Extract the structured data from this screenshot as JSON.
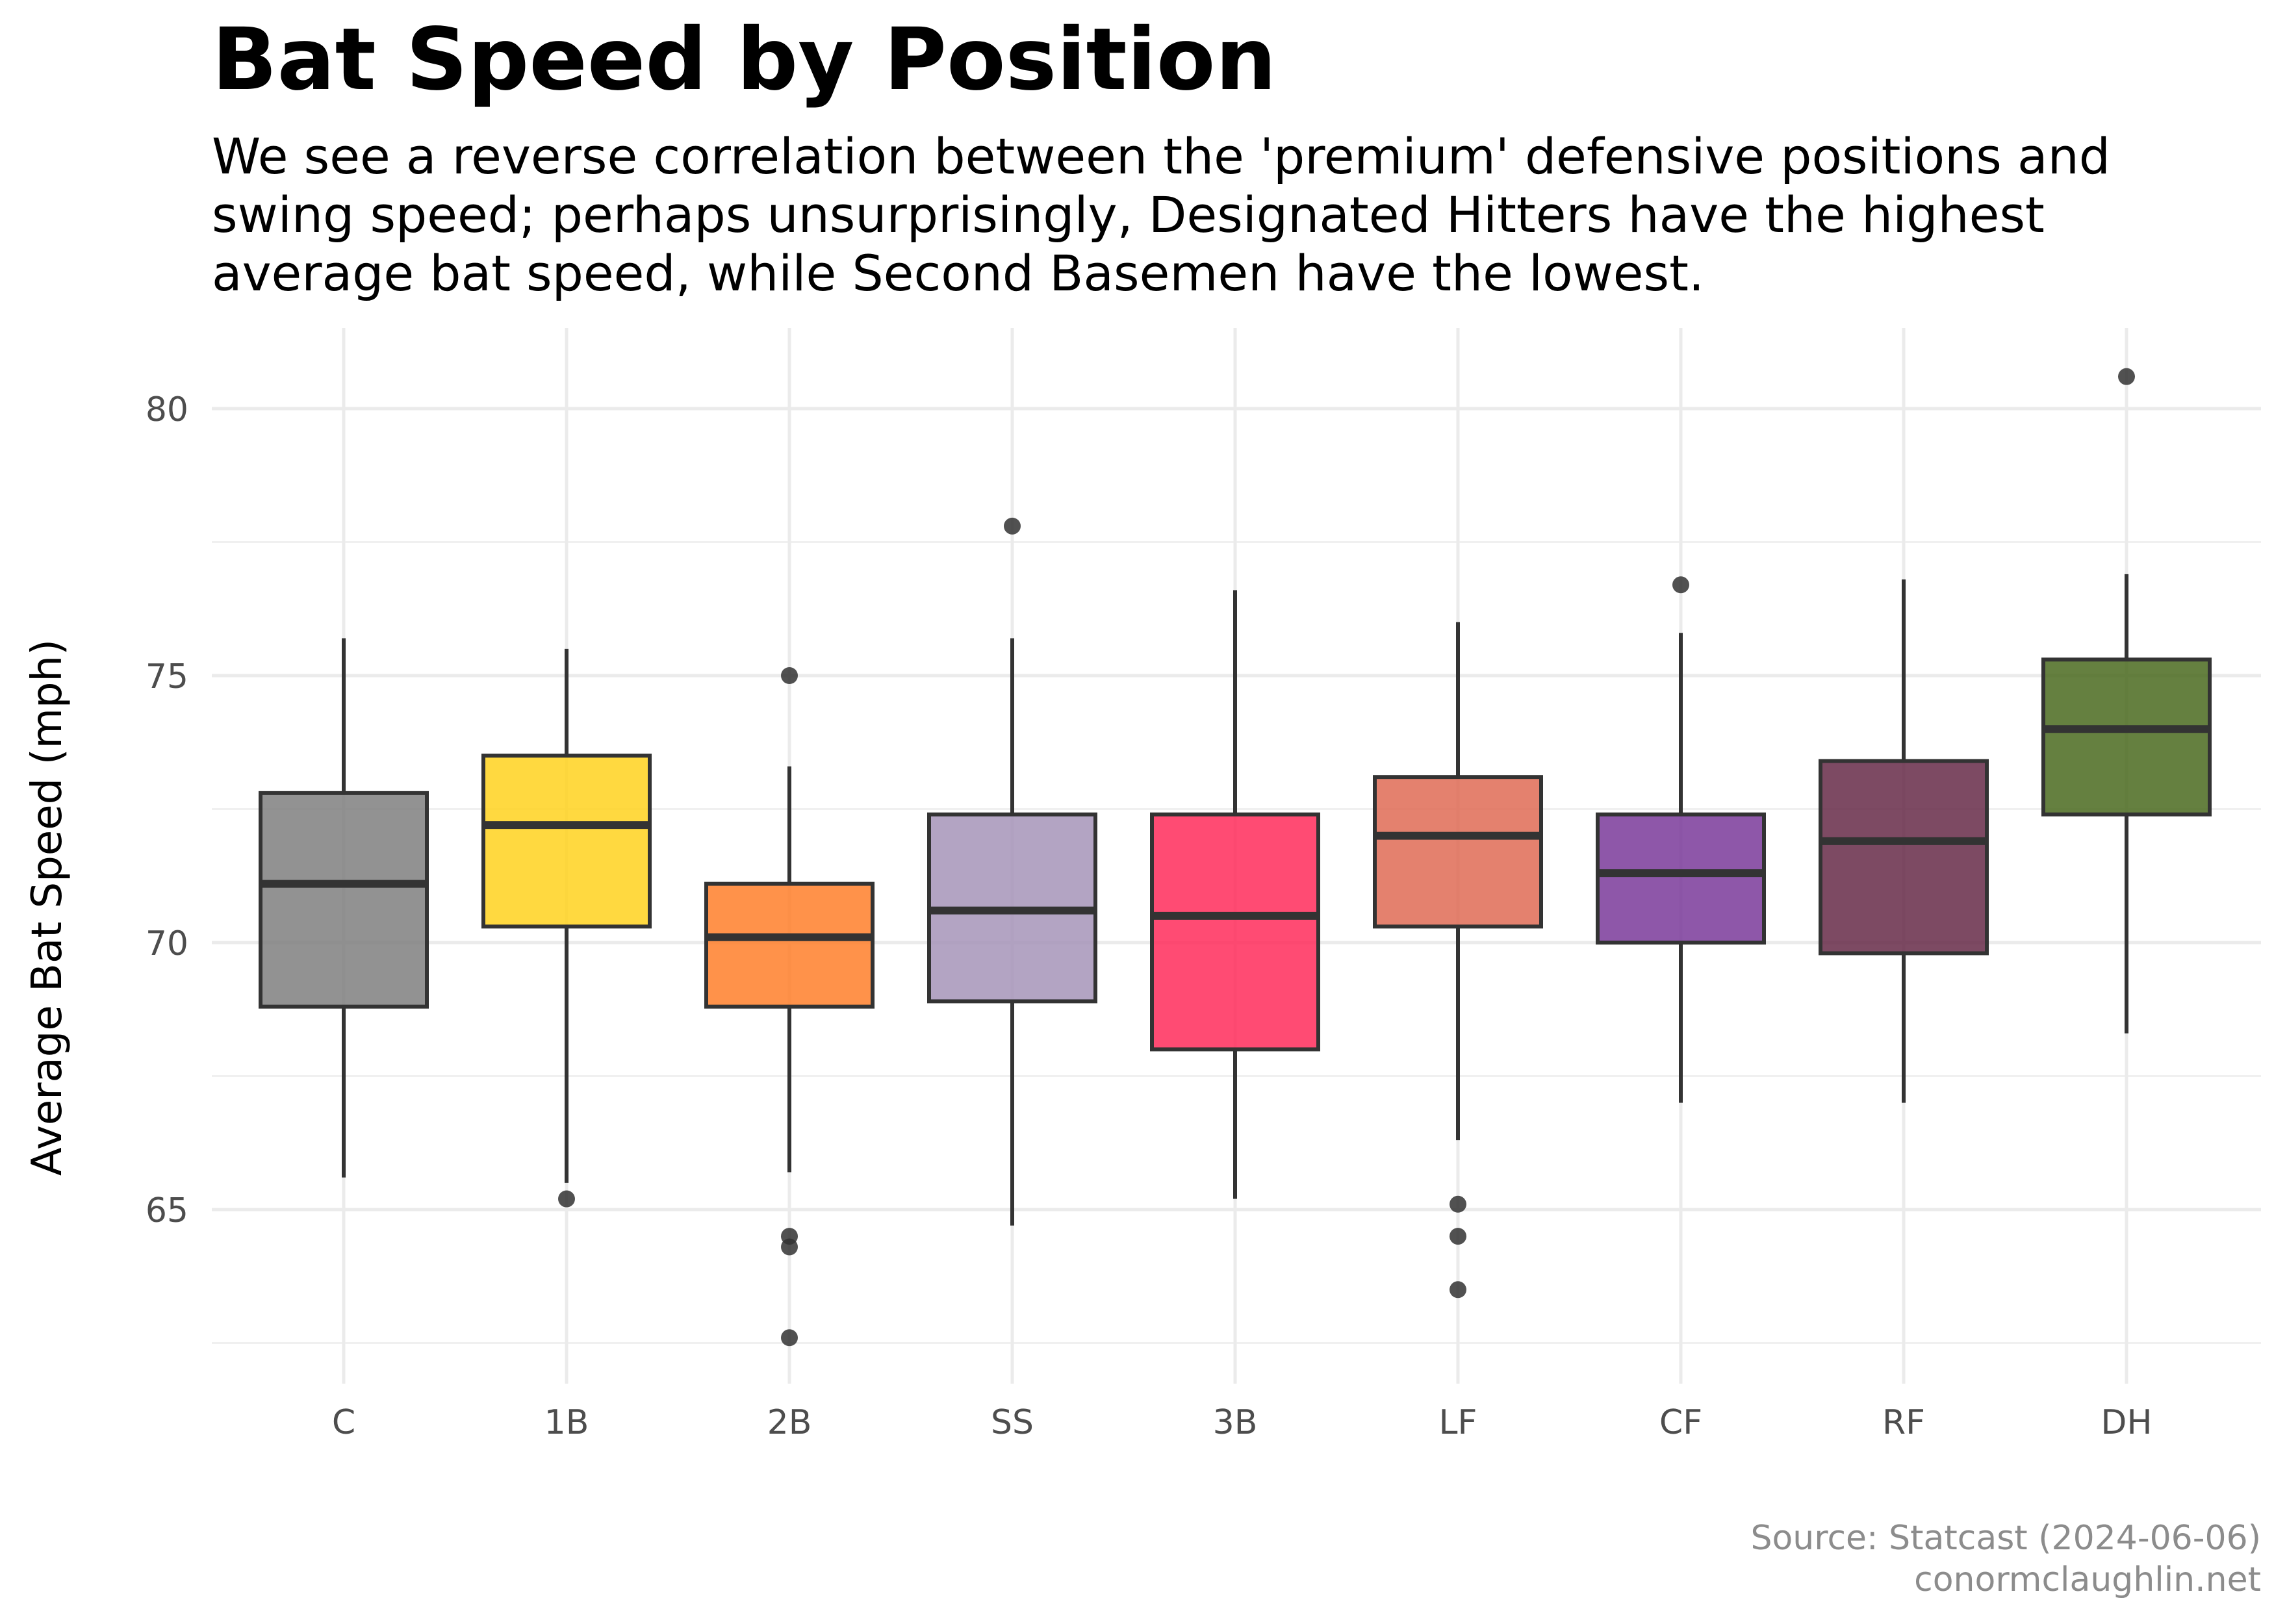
{
  "header": {
    "title": "Bat Speed by Position",
    "subtitle": "We see a reverse correlation between the 'premium' defensive positions and swing speed; perhaps unsurprisingly, Designated Hitters have the highest average bat speed, while Second Basemen have the lowest."
  },
  "caption": {
    "line1": "Source: Statcast (2024-06-06)",
    "line2": "conormclaughlin.net"
  },
  "chart_data": {
    "type": "boxplot",
    "title": "Bat Speed by Position",
    "xlabel": "",
    "ylabel": "Average Bat Speed (mph)",
    "ylim": [
      62.2,
      81.5
    ],
    "yticks": [
      65,
      70,
      75,
      80
    ],
    "grid": true,
    "legend": "none",
    "categories": [
      "C",
      "1B",
      "2B",
      "SS",
      "3B",
      "LF",
      "CF",
      "RF",
      "DH"
    ],
    "boxes": [
      {
        "name": "C",
        "whisker_low": 65.6,
        "q1": 68.8,
        "median": 71.1,
        "q3": 72.8,
        "whisker_high": 75.7,
        "outliers": [],
        "color": "#7f7f7f"
      },
      {
        "name": "1B",
        "whisker_low": 65.5,
        "q1": 70.3,
        "median": 72.2,
        "q3": 73.5,
        "whisker_high": 75.5,
        "outliers": [
          65.2
        ],
        "color": "#ffd21f"
      },
      {
        "name": "2B",
        "whisker_low": 65.7,
        "q1": 68.8,
        "median": 70.1,
        "q3": 71.1,
        "whisker_high": 73.3,
        "outliers": [
          75.0,
          64.5,
          64.3,
          62.6
        ],
        "color": "#ff7f2a"
      },
      {
        "name": "SS",
        "whisker_low": 64.7,
        "q1": 68.9,
        "median": 70.6,
        "q3": 72.4,
        "whisker_high": 75.7,
        "outliers": [
          77.8
        ],
        "color": "#a694b8"
      },
      {
        "name": "3B",
        "whisker_low": 65.2,
        "q1": 68.0,
        "median": 70.5,
        "q3": 72.4,
        "whisker_high": 76.6,
        "outliers": [],
        "color": "#ff2b5a"
      },
      {
        "name": "LF",
        "whisker_low": 66.3,
        "q1": 70.3,
        "median": 72.0,
        "q3": 73.1,
        "whisker_high": 76.0,
        "outliers": [
          65.1,
          64.5,
          63.5
        ],
        "color": "#df6b55"
      },
      {
        "name": "CF",
        "whisker_low": 67.0,
        "q1": 70.0,
        "median": 71.3,
        "q3": 72.4,
        "whisker_high": 75.8,
        "outliers": [
          76.7
        ],
        "color": "#7a3a9a"
      },
      {
        "name": "RF",
        "whisker_low": 67.0,
        "q1": 69.8,
        "median": 71.9,
        "q3": 73.4,
        "whisker_high": 76.8,
        "outliers": [],
        "color": "#662a48"
      },
      {
        "name": "DH",
        "whisker_low": 68.3,
        "q1": 72.4,
        "median": 74.0,
        "q3": 75.3,
        "whisker_high": 76.9,
        "outliers": [
          80.6
        ],
        "color": "#4a6a1f"
      }
    ]
  }
}
